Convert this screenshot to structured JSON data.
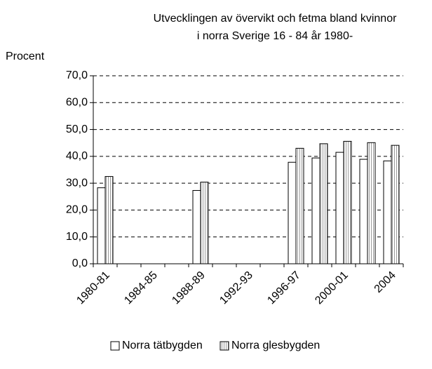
{
  "chart_data": {
    "type": "bar",
    "title": [
      "Utvecklingen av övervikt och fetma bland kvinnor",
      "i norra Sverige 16 - 84 år 1980-"
    ],
    "y_label": "Procent",
    "categories": [
      "1980-81",
      null,
      "1984-85",
      null,
      "1988-89",
      null,
      "1992-93",
      null,
      "1996-97",
      null,
      "2000-01",
      null,
      "2004"
    ],
    "series": [
      {
        "name": "Norra tätbygden",
        "color": "#ffffff",
        "values": [
          28.3,
          null,
          null,
          null,
          27.3,
          null,
          null,
          null,
          37.8,
          39.4,
          41.5,
          38.9,
          38.3
        ]
      },
      {
        "name": "Norra glesbygden",
        "color": "#e0e0e0",
        "values": [
          32.5,
          null,
          null,
          null,
          30.4,
          null,
          null,
          null,
          43.0,
          44.7,
          45.6,
          45.1,
          44.1
        ]
      }
    ],
    "ylim": [
      0,
      70
    ],
    "yticks": [
      {
        "value": 0,
        "label": "0,0"
      },
      {
        "value": 10,
        "label": "10,0"
      },
      {
        "value": 20,
        "label": "20,0"
      },
      {
        "value": 30,
        "label": "30,0"
      },
      {
        "value": 40,
        "label": "40,0"
      },
      {
        "value": 50,
        "label": "50,0"
      },
      {
        "value": 60,
        "label": "60,0"
      },
      {
        "value": 70,
        "label": "70,0"
      }
    ],
    "grid": true,
    "legend": "bottom"
  }
}
